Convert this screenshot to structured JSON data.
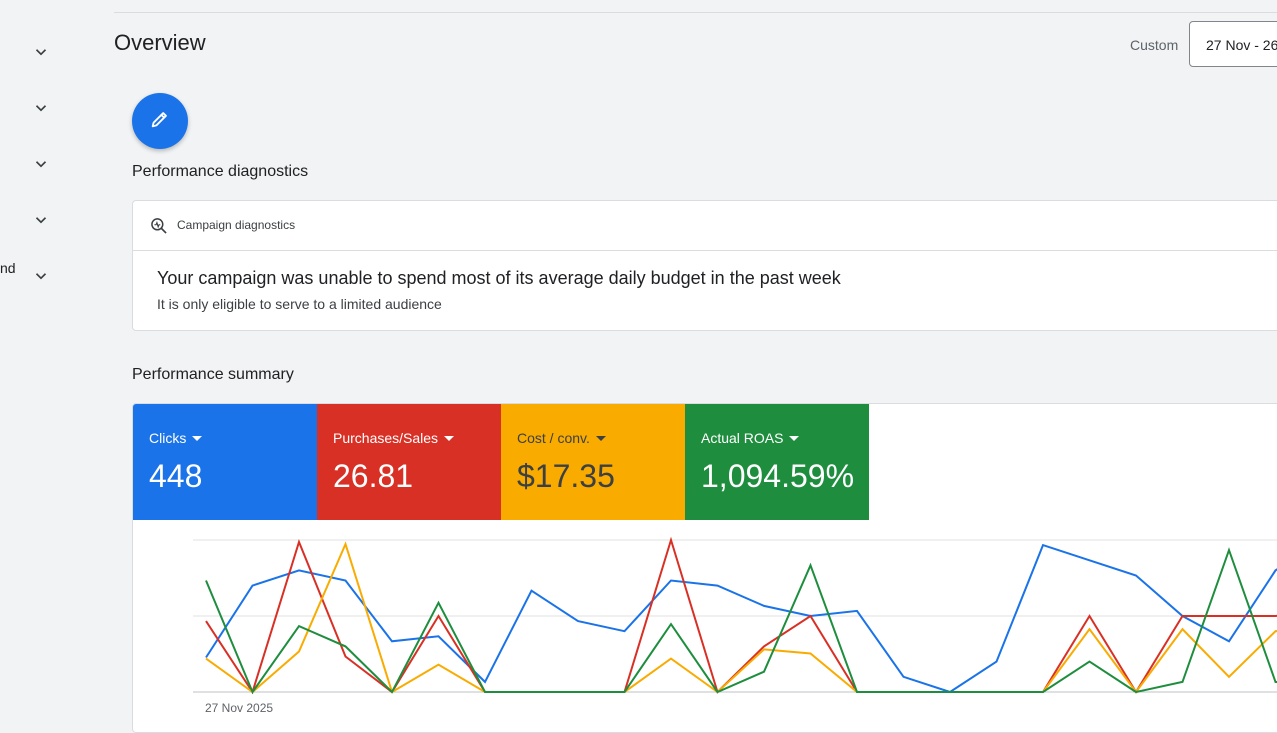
{
  "page": {
    "title": "Overview"
  },
  "date_range": {
    "mode_label": "Custom",
    "value": "27 Nov - 26"
  },
  "sidebar": {
    "items": [
      {
        "label": ""
      },
      {
        "label": ""
      },
      {
        "label": ""
      },
      {
        "label": ""
      },
      {
        "label": "nd"
      }
    ]
  },
  "diagnostics": {
    "section_title": "Performance diagnostics",
    "card_label": "Campaign diagnostics",
    "headline": "Your campaign was unable to spend most of its average daily budget in the past week",
    "detail": "It is only eligible to serve to a limited audience"
  },
  "summary": {
    "section_title": "Performance summary",
    "tiles": [
      {
        "label": "Clicks",
        "value": "448",
        "color": "#1a73e8",
        "text_color": "#ffffff"
      },
      {
        "label": "Purchases/Sales",
        "value": "26.81",
        "color": "#d93025",
        "text_color": "#ffffff"
      },
      {
        "label": "Cost / conv.",
        "value": "$17.35",
        "color": "#f9ab00",
        "text_color": "#3c4043"
      },
      {
        "label": "Actual ROAS",
        "value": "1,094.59%",
        "color": "#1e8e3e",
        "text_color": "#ffffff"
      }
    ]
  },
  "chart_data": {
    "type": "line",
    "x_start_label": "27 Nov 2025",
    "ylim": [
      0,
      150
    ],
    "grid": true,
    "series": [
      {
        "color": "#1a73e8",
        "values": [
          34,
          105,
          120,
          110,
          50,
          55,
          10,
          100,
          70,
          60,
          110,
          105,
          85,
          75,
          80,
          15,
          0,
          30,
          145,
          130,
          115,
          75,
          50,
          120,
          150
        ]
      },
      {
        "color": "#d93025",
        "values": [
          70,
          0,
          148,
          35,
          0,
          75,
          0,
          0,
          0,
          0,
          150,
          0,
          45,
          75,
          0,
          0,
          0,
          0,
          0,
          75,
          0,
          75,
          75,
          75,
          80
        ]
      },
      {
        "color": "#f9ab00",
        "values": [
          33,
          0,
          40,
          146,
          0,
          27,
          0,
          0,
          0,
          0,
          33,
          0,
          42,
          38,
          0,
          0,
          0,
          0,
          0,
          62,
          0,
          62,
          15,
          60,
          65
        ]
      },
      {
        "color": "#1e8e3e",
        "values": [
          110,
          0,
          65,
          45,
          0,
          88,
          0,
          0,
          0,
          0,
          67,
          0,
          20,
          125,
          0,
          0,
          0,
          0,
          0,
          30,
          0,
          10,
          140,
          10,
          5
        ]
      }
    ]
  }
}
